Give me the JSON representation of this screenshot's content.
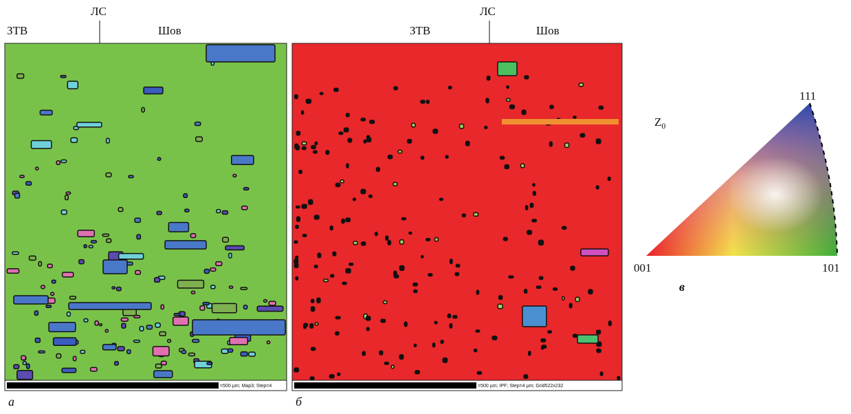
{
  "panels": [
    {
      "zone_left": "ЗТВ",
      "fusion_line": "ЛС",
      "zone_right": "Шов",
      "scale_text": "=500 µm; Map3; Step=4",
      "caption": "а"
    },
    {
      "zone_left": "ЗТВ",
      "fusion_line": "ЛС",
      "zone_right": "Шов",
      "scale_text": "=500 µm; IPF; Step=4 µm; Grid522x232",
      "caption": "б"
    }
  ],
  "legend": {
    "axis_base": "Z",
    "axis_sub": "0",
    "corner_top": "111",
    "corner_left": "001",
    "corner_right": "101",
    "caption": "в"
  }
}
